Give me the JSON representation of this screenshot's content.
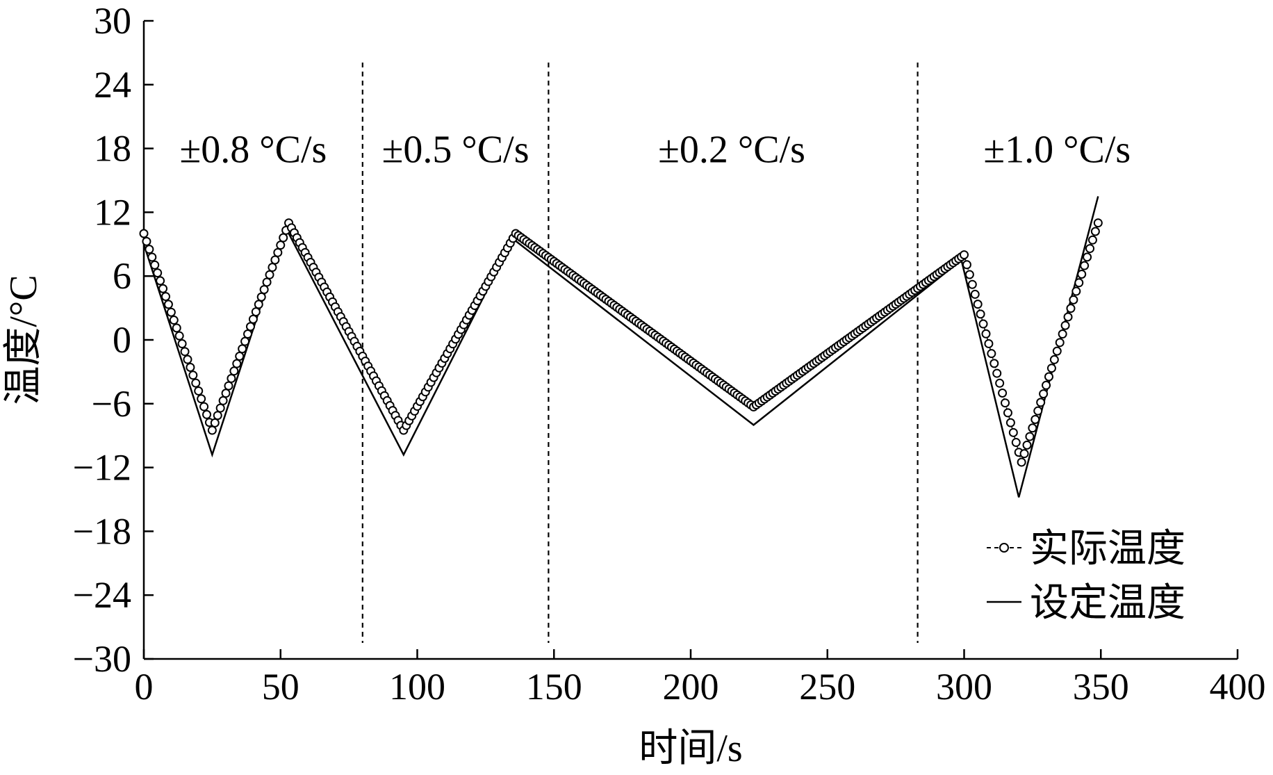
{
  "chart_data": {
    "type": "line",
    "xlabel": "时间/s",
    "ylabel": "温度/°C",
    "xlim": [
      0,
      400
    ],
    "ylim": [
      -30,
      30
    ],
    "xticks": [
      0,
      50,
      100,
      150,
      200,
      250,
      300,
      350,
      400
    ],
    "yticks": [
      -30,
      -24,
      -18,
      -12,
      -6,
      0,
      6,
      12,
      18,
      24,
      30
    ],
    "ytick_labels": [
      "−30",
      "−24",
      "−18",
      "−12",
      "−6",
      "0",
      "6",
      "12",
      "18",
      "24",
      "30"
    ],
    "grid": false,
    "legend_position": "bottom-right",
    "dividers_x": [
      80,
      148,
      283
    ],
    "phase_labels": [
      {
        "text": "±0.8 °C/s",
        "x": 40,
        "y": 18
      },
      {
        "text": "±0.5 °C/s",
        "x": 114,
        "y": 18
      },
      {
        "text": "±0.2 °C/s",
        "x": 215,
        "y": 18
      },
      {
        "text": "±1.0 °C/s",
        "x": 334,
        "y": 18
      }
    ],
    "series": [
      {
        "name": "实际温度",
        "style": "dashed-circle-markers",
        "x": [
          0,
          25,
          53,
          95,
          136,
          223,
          300,
          321,
          349
        ],
        "y": [
          10,
          -8.5,
          11,
          -8.5,
          10,
          -6.3,
          8,
          -11.5,
          11
        ]
      },
      {
        "name": "设定温度",
        "style": "solid",
        "x": [
          0,
          25,
          52,
          95,
          135,
          223,
          299,
          320,
          349
        ],
        "y": [
          9,
          -10.8,
          10.5,
          -10.8,
          9.5,
          -8,
          7.5,
          -14.8,
          13.5
        ]
      }
    ]
  }
}
